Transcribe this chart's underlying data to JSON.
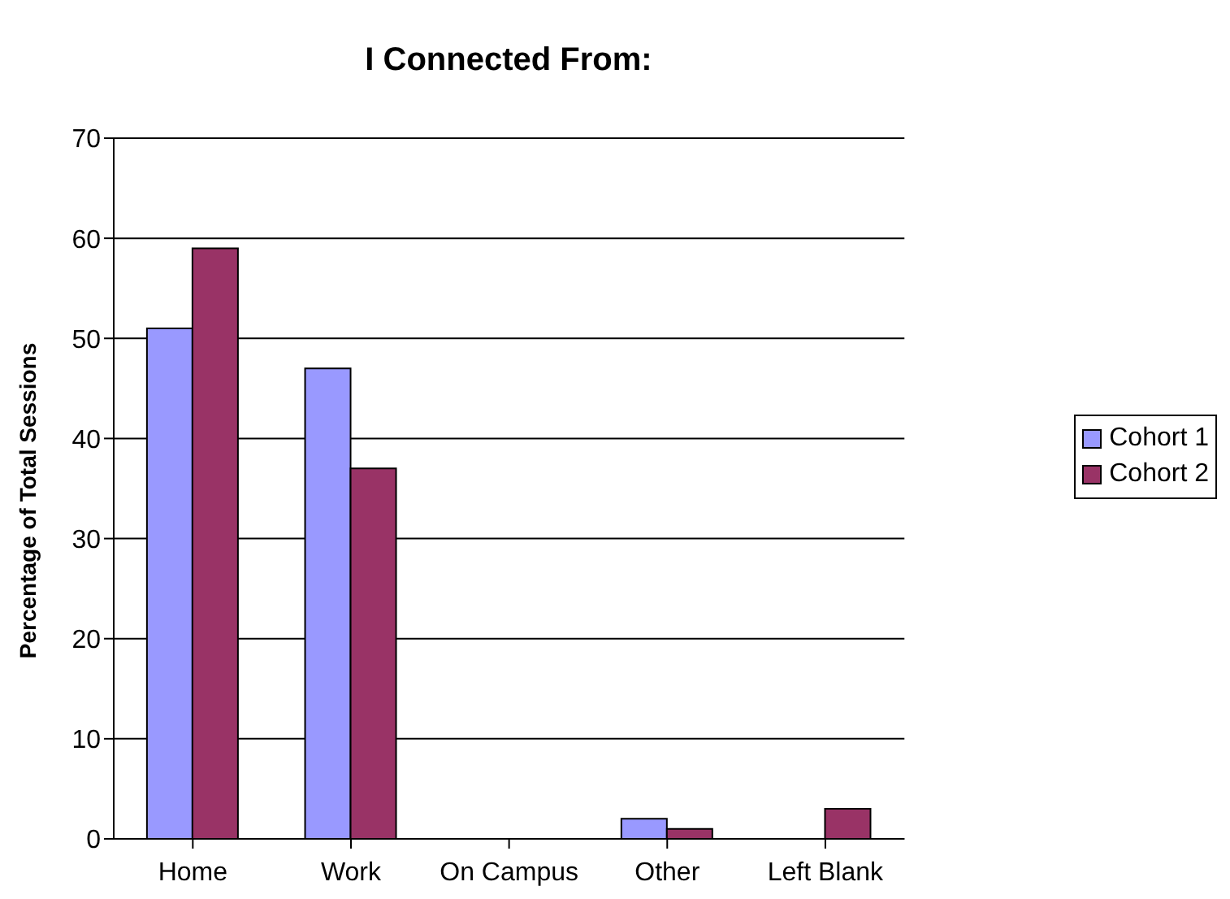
{
  "chart_data": {
    "type": "bar",
    "title": "I Connected From:",
    "ylabel": "Percentage of Total Sessions",
    "categories": [
      "Home",
      "Work",
      "On Campus",
      "Other",
      "Left Blank"
    ],
    "series": [
      {
        "name": "Cohort 1",
        "color": "#9999ff",
        "values": [
          51,
          47,
          0,
          2,
          0
        ]
      },
      {
        "name": "Cohort 2",
        "color": "#993366",
        "values": [
          59,
          37,
          0,
          1,
          3
        ]
      }
    ],
    "ylim": [
      0,
      70
    ],
    "yticks": [
      0,
      10,
      20,
      30,
      40,
      50,
      60,
      70
    ],
    "grid": "y",
    "legend": "right"
  }
}
